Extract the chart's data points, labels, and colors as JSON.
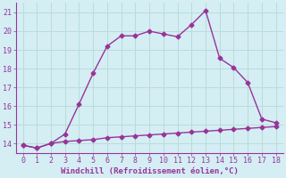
{
  "xlabel": "Windchill (Refroidissement éolien,°C)",
  "background_color": "#d4eef4",
  "line_color": "#993399",
  "xlim": [
    -0.5,
    18.5
  ],
  "ylim": [
    13.5,
    21.5
  ],
  "xticks": [
    0,
    1,
    2,
    3,
    4,
    5,
    6,
    7,
    8,
    9,
    10,
    11,
    12,
    13,
    14,
    15,
    16,
    17,
    18
  ],
  "yticks": [
    14,
    15,
    16,
    17,
    18,
    19,
    20,
    21
  ],
  "line1_x": [
    0,
    1,
    2,
    3,
    4,
    5,
    6,
    7,
    8,
    9,
    10,
    11,
    12,
    13,
    14,
    15,
    16,
    17,
    18
  ],
  "line1_y": [
    13.9,
    13.75,
    14.0,
    14.5,
    16.1,
    17.75,
    19.2,
    19.75,
    19.75,
    20.0,
    19.85,
    19.7,
    20.35,
    21.1,
    18.55,
    18.05,
    17.25,
    15.3,
    15.1
  ],
  "line2_x": [
    0,
    1,
    2,
    3,
    4,
    5,
    6,
    7,
    8,
    9,
    10,
    11,
    12,
    13,
    14,
    15,
    16,
    17,
    18
  ],
  "line2_y": [
    13.9,
    13.75,
    14.0,
    14.1,
    14.15,
    14.2,
    14.3,
    14.35,
    14.4,
    14.45,
    14.5,
    14.55,
    14.6,
    14.65,
    14.7,
    14.75,
    14.8,
    14.85,
    14.9
  ],
  "grid_color": "#b8ddd8",
  "marker": "D",
  "marker_size": 2.5,
  "linewidth": 1.0,
  "xlabel_fontsize": 6.5,
  "tick_fontsize": 6.0
}
